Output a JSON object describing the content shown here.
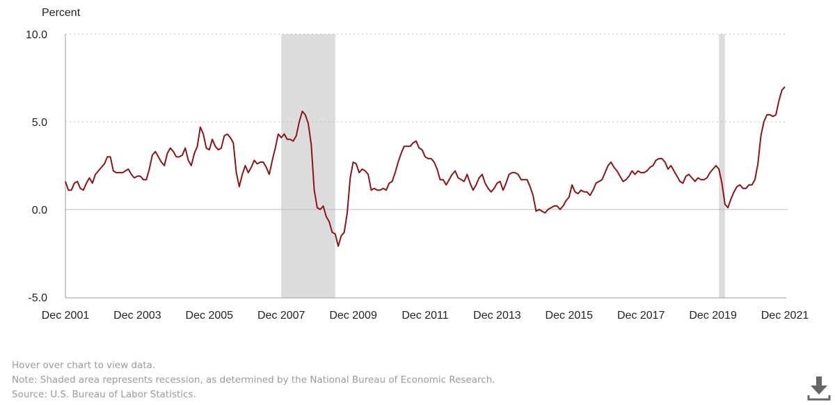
{
  "chart_data": {
    "type": "line",
    "ylabel": "Percent",
    "ylim": [
      -5,
      10
    ],
    "yticks": [
      "10.0",
      "5.0",
      "0.0",
      "-5.0"
    ],
    "ytick_values": [
      10,
      5,
      0,
      -5
    ],
    "xticks": [
      "Dec 2001",
      "Dec 2003",
      "Dec 2005",
      "Dec 2007",
      "Dec 2009",
      "Dec 2011",
      "Dec 2013",
      "Dec 2015",
      "Dec 2017",
      "Dec 2019",
      "Dec 2021"
    ],
    "x_start": "Dec 2001",
    "x_end": "Dec 2021",
    "grid": "horizontal dotted",
    "line_color": "#8b1414",
    "recession_color": "#dcdcdc",
    "recessions": [
      [
        "Dec 2007",
        "Jun 2009"
      ],
      [
        "Feb 2020",
        "Apr 2020"
      ]
    ],
    "series": [
      {
        "values": [
          1.6,
          1.1,
          1.1,
          1.5,
          1.6,
          1.2,
          1.1,
          1.5,
          1.8,
          1.5,
          2.0,
          2.2,
          2.4,
          2.6,
          3.0,
          3.0,
          2.2,
          2.1,
          2.1,
          2.1,
          2.2,
          2.3,
          2.0,
          1.8,
          1.9,
          1.9,
          1.7,
          1.7,
          2.3,
          3.1,
          3.3,
          3.0,
          2.7,
          2.5,
          3.2,
          3.5,
          3.3,
          3.0,
          3.0,
          3.1,
          3.5,
          2.8,
          2.5,
          3.2,
          3.6,
          4.7,
          4.3,
          3.5,
          3.4,
          4.0,
          3.6,
          3.4,
          3.5,
          4.2,
          4.3,
          4.1,
          3.8,
          2.1,
          1.3,
          2.0,
          2.5,
          2.1,
          2.4,
          2.8,
          2.6,
          2.7,
          2.7,
          2.4,
          2.0,
          2.8,
          3.5,
          4.3,
          4.1,
          4.3,
          4.0,
          4.0,
          3.9,
          4.2,
          5.0,
          5.6,
          5.4,
          4.9,
          3.7,
          1.1,
          0.1,
          0.0,
          0.2,
          -0.4,
          -0.7,
          -1.3,
          -1.4,
          -2.1,
          -1.5,
          -1.3,
          -0.2,
          1.8,
          2.7,
          2.6,
          2.1,
          2.3,
          2.2,
          2.0,
          1.1,
          1.2,
          1.1,
          1.1,
          1.2,
          1.1,
          1.5,
          1.6,
          2.1,
          2.7,
          3.2,
          3.6,
          3.6,
          3.6,
          3.8,
          3.9,
          3.5,
          3.4,
          3.0,
          2.9,
          2.9,
          2.7,
          2.3,
          1.7,
          1.7,
          1.4,
          1.7,
          2.0,
          2.2,
          1.8,
          1.7,
          1.6,
          2.0,
          1.5,
          1.1,
          1.4,
          1.8,
          2.0,
          1.5,
          1.2,
          1.0,
          1.2,
          1.5,
          1.6,
          1.1,
          1.5,
          2.0,
          2.1,
          2.1,
          2.0,
          1.7,
          1.7,
          1.7,
          1.3,
          0.8,
          -0.1,
          0.0,
          -0.1,
          -0.2,
          0.0,
          0.1,
          0.2,
          0.2,
          0.0,
          0.2,
          0.5,
          0.7,
          1.4,
          1.0,
          0.9,
          1.1,
          1.0,
          1.0,
          0.8,
          1.1,
          1.5,
          1.6,
          1.7,
          2.1,
          2.5,
          2.7,
          2.4,
          2.2,
          1.9,
          1.6,
          1.7,
          1.9,
          2.2,
          2.0,
          2.2,
          2.1,
          2.1,
          2.2,
          2.4,
          2.5,
          2.8,
          2.9,
          2.9,
          2.7,
          2.3,
          2.5,
          2.2,
          1.9,
          1.6,
          1.5,
          1.9,
          2.0,
          1.8,
          1.6,
          1.8,
          1.7,
          1.7,
          1.8,
          2.1,
          2.3,
          2.5,
          2.3,
          1.5,
          0.3,
          0.1,
          0.6,
          1.0,
          1.3,
          1.4,
          1.2,
          1.2,
          1.4,
          1.4,
          1.7,
          2.6,
          4.2,
          5.0,
          5.4,
          5.4,
          5.3,
          5.4,
          6.2,
          6.8,
          7.0
        ]
      }
    ]
  },
  "notes": {
    "hover": "Hover over chart to view data.",
    "note": "Note: Shaded area represents recession, as determined by the National Bureau of Economic Research.",
    "source": "Source: U.S. Bureau of Labor Statistics."
  },
  "download": {
    "icon": "download-icon"
  }
}
